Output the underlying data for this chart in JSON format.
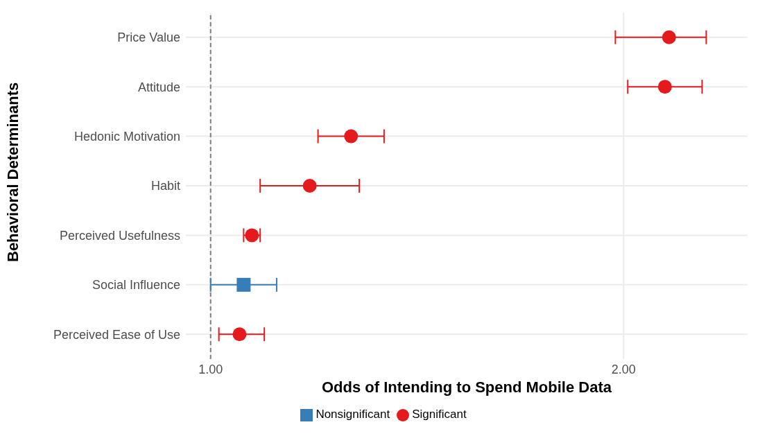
{
  "chart_data": {
    "type": "scatter",
    "orientation": "horizontal",
    "xlabel": "Odds of Intending to Spend Mobile Data",
    "ylabel": "Behavioral Determinants",
    "categories": [
      "Price Value",
      "Attitude",
      "Hedonic Motivation",
      "Habit",
      "Perceived Usefulness",
      "Social Influence",
      "Perceived Ease of Use"
    ],
    "series": [
      {
        "name": "Nonsignificant",
        "color": "#377eb8",
        "marker": "square",
        "values": [
          null,
          null,
          null,
          null,
          null,
          1.08,
          null
        ],
        "errors": [
          null,
          null,
          null,
          null,
          null,
          [
            1.0,
            1.16
          ],
          null
        ]
      },
      {
        "name": "Significant",
        "color": "#e41a1c",
        "marker": "circle",
        "values": [
          2.11,
          2.1,
          1.34,
          1.24,
          1.1,
          null,
          1.07
        ],
        "errors": [
          [
            1.98,
            2.2
          ],
          [
            2.01,
            2.19
          ],
          [
            1.26,
            1.42
          ],
          [
            1.12,
            1.36
          ],
          [
            1.08,
            1.12
          ],
          null,
          [
            1.02,
            1.13
          ]
        ]
      }
    ],
    "xlim": [
      0.94,
      2.3
    ],
    "xticks": [
      {
        "value": 1,
        "label": "1.00"
      },
      {
        "value": 2,
        "label": "2.00"
      }
    ],
    "ref_lines": [
      {
        "axis": "x",
        "value": 1,
        "color": "#808080",
        "line_style": "dashed"
      }
    ],
    "grid": true,
    "legend": "bottom"
  }
}
